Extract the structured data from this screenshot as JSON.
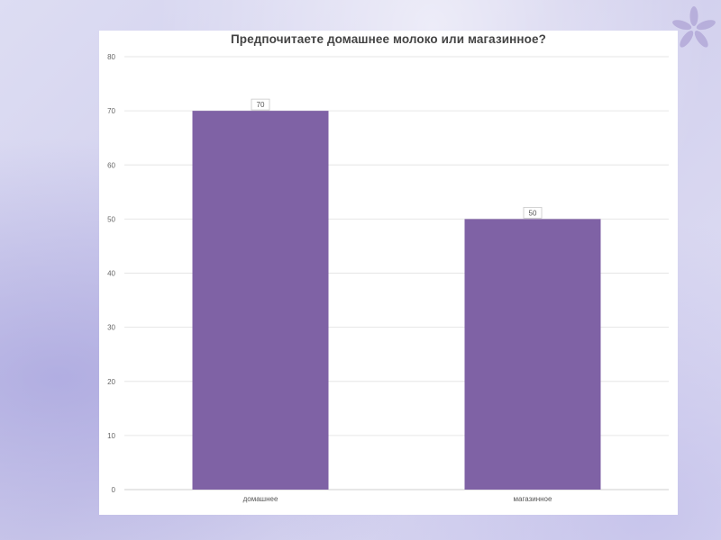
{
  "chart_data": {
    "type": "bar",
    "title": "Предпочитаете домашнее молоко или магазинное?",
    "categories": [
      "домашнее",
      "магазинное"
    ],
    "values": [
      70,
      50
    ],
    "data_labels": [
      "70",
      "50"
    ],
    "y_ticks": [
      "0",
      "10",
      "20",
      "30",
      "40",
      "50",
      "60",
      "70",
      "80"
    ],
    "ylim": [
      0,
      80
    ],
    "grid": true,
    "bar_color": "#7f62a5"
  }
}
